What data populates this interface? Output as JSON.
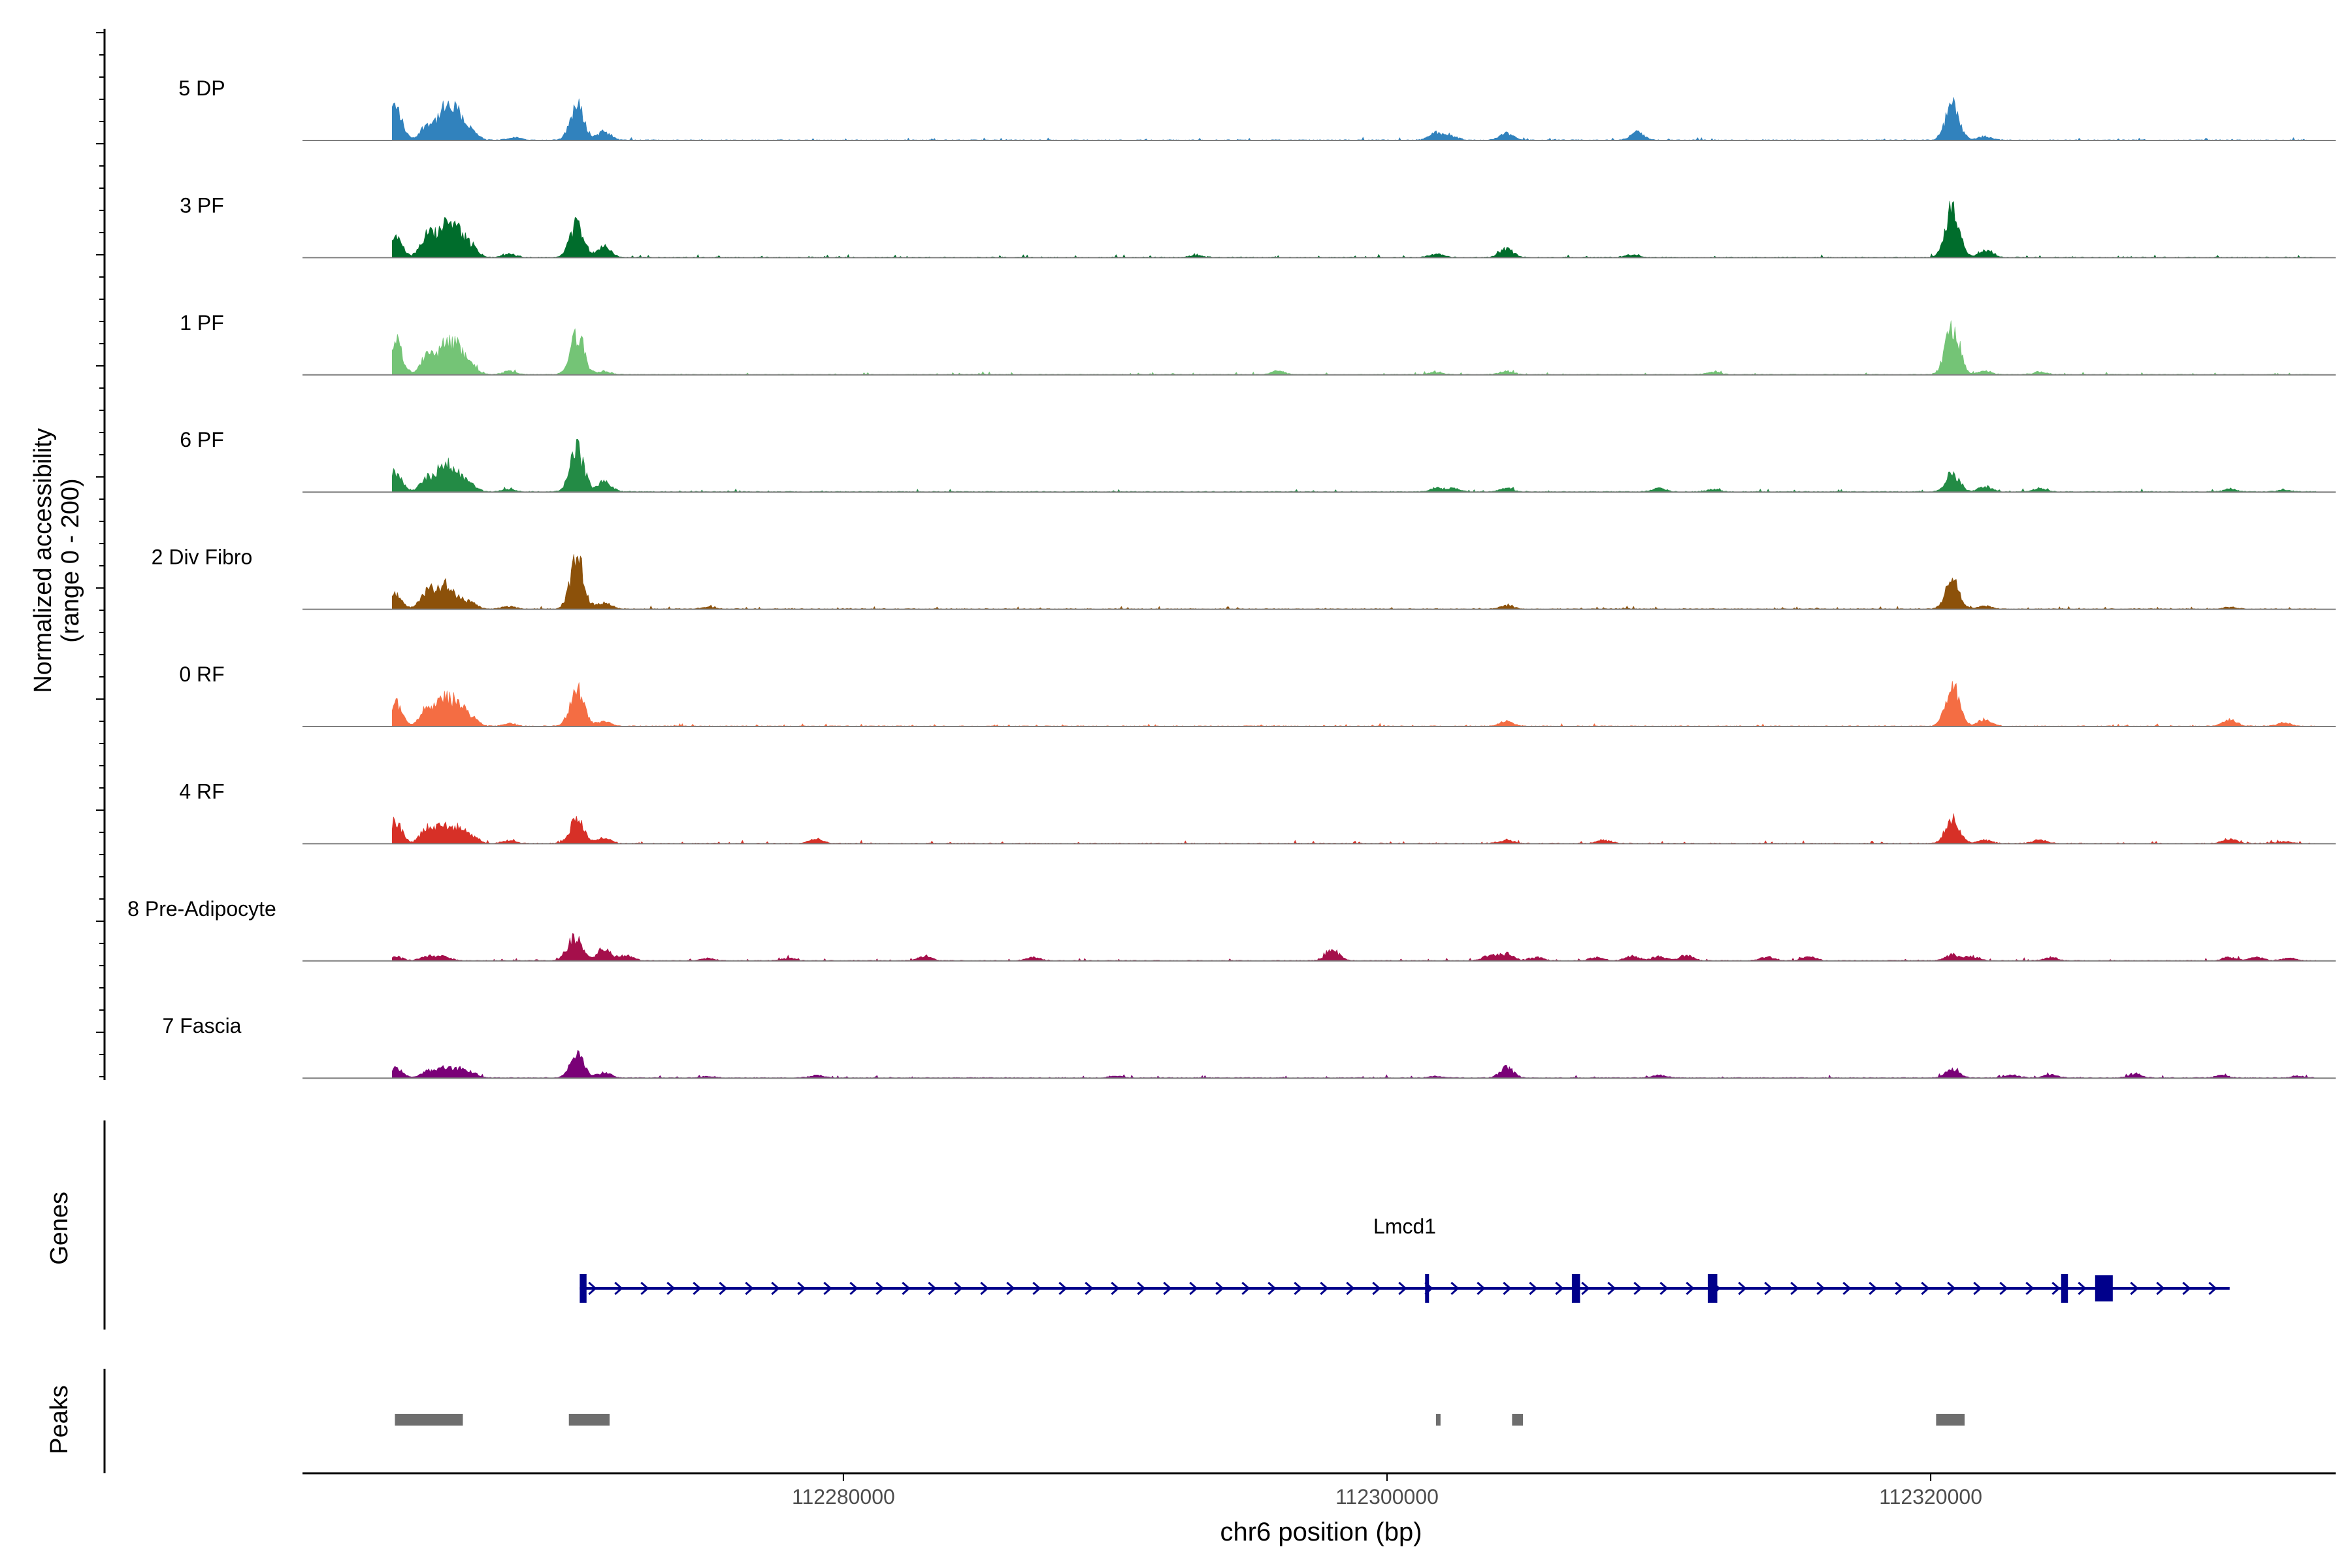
{
  "chart_data": {
    "type": "area",
    "title": "",
    "xlabel": "chr6 position (bp)",
    "ylabel": "Normalized accessibility",
    "ylabel_range": "(range 0 - 200)",
    "ylim": [
      0,
      200
    ],
    "xlim": [
      112260100,
      112334900
    ],
    "x_ticks": [
      112280000,
      112300000,
      112320000
    ],
    "x_tick_labels": [
      "112280000",
      "112300000",
      "112320000"
    ],
    "background_color": "#ffffff",
    "tracks": [
      {
        "name": "5 DP",
        "color": "#3182bd",
        "peaks": [
          [
            112263500,
            200
          ],
          [
            112264700,
            90
          ],
          [
            112265300,
            160
          ],
          [
            112265800,
            150
          ],
          [
            112266300,
            50
          ],
          [
            112267900,
            15
          ],
          [
            112270200,
            205
          ],
          [
            112271200,
            50
          ],
          [
            112301800,
            40
          ],
          [
            112302400,
            20
          ],
          [
            112304400,
            40
          ],
          [
            112309200,
            45
          ],
          [
            112320800,
            210
          ],
          [
            112322000,
            20
          ]
        ]
      },
      {
        "name": "3 PF",
        "color": "#006d2c",
        "peaks": [
          [
            112263500,
            120
          ],
          [
            112264700,
            130
          ],
          [
            112265300,
            160
          ],
          [
            112265800,
            150
          ],
          [
            112266300,
            60
          ],
          [
            112267700,
            20
          ],
          [
            112270200,
            200
          ],
          [
            112271200,
            60
          ],
          [
            112293000,
            10
          ],
          [
            112301800,
            20
          ],
          [
            112304400,
            50
          ],
          [
            112309000,
            15
          ],
          [
            112320800,
            290
          ],
          [
            112322000,
            40
          ]
        ]
      },
      {
        "name": "1 PF",
        "color": "#74c476",
        "peaks": [
          [
            112263500,
            210
          ],
          [
            112264700,
            110
          ],
          [
            112265300,
            150
          ],
          [
            112265800,
            160
          ],
          [
            112266300,
            50
          ],
          [
            112267700,
            20
          ],
          [
            112270200,
            235
          ],
          [
            112271200,
            20
          ],
          [
            112296000,
            20
          ],
          [
            112301800,
            15
          ],
          [
            112304400,
            20
          ],
          [
            112312000,
            15
          ],
          [
            112320800,
            290
          ],
          [
            112322000,
            20
          ],
          [
            112324000,
            15
          ]
        ]
      },
      {
        "name": "6 PF",
        "color": "#238b45",
        "peaks": [
          [
            112263500,
            110
          ],
          [
            112264700,
            80
          ],
          [
            112265300,
            160
          ],
          [
            112265800,
            90
          ],
          [
            112266300,
            40
          ],
          [
            112267700,
            15
          ],
          [
            112270200,
            255
          ],
          [
            112271200,
            60
          ],
          [
            112301800,
            20
          ],
          [
            112302400,
            20
          ],
          [
            112304400,
            20
          ],
          [
            112310000,
            20
          ],
          [
            112312000,
            15
          ],
          [
            112320800,
            110
          ],
          [
            112322000,
            30
          ],
          [
            112324000,
            20
          ],
          [
            112331000,
            15
          ],
          [
            112333000,
            10
          ]
        ]
      },
      {
        "name": "2 Div Fibro",
        "color": "#8c510a",
        "peaks": [
          [
            112263500,
            80
          ],
          [
            112264700,
            110
          ],
          [
            112265300,
            130
          ],
          [
            112265800,
            60
          ],
          [
            112266300,
            30
          ],
          [
            112267700,
            15
          ],
          [
            112270200,
            295
          ],
          [
            112271200,
            40
          ],
          [
            112275000,
            10
          ],
          [
            112304400,
            20
          ],
          [
            112320800,
            170
          ],
          [
            112322000,
            20
          ],
          [
            112331000,
            10
          ]
        ]
      },
      {
        "name": "0 RF",
        "color": "#f46d43",
        "peaks": [
          [
            112263500,
            140
          ],
          [
            112264700,
            110
          ],
          [
            112265300,
            150
          ],
          [
            112265800,
            120
          ],
          [
            112266300,
            50
          ],
          [
            112267700,
            15
          ],
          [
            112270200,
            225
          ],
          [
            112271200,
            30
          ],
          [
            112304400,
            30
          ],
          [
            112320800,
            235
          ],
          [
            112322000,
            40
          ],
          [
            112331000,
            40
          ],
          [
            112333000,
            20
          ]
        ]
      },
      {
        "name": "4 RF",
        "color": "#d73027",
        "peaks": [
          [
            112263500,
            130
          ],
          [
            112264700,
            90
          ],
          [
            112265300,
            100
          ],
          [
            112265800,
            80
          ],
          [
            112266300,
            40
          ],
          [
            112267700,
            15
          ],
          [
            112270200,
            145
          ],
          [
            112271200,
            30
          ],
          [
            112279000,
            25
          ],
          [
            112304400,
            20
          ],
          [
            112308000,
            20
          ],
          [
            112320800,
            150
          ],
          [
            112322000,
            20
          ],
          [
            112324000,
            20
          ],
          [
            112331000,
            25
          ],
          [
            112333000,
            10
          ]
        ]
      },
      {
        "name": "8 Pre-Adipocyte",
        "color": "#a50f4b",
        "peaks": [
          [
            112263500,
            25
          ],
          [
            112264700,
            25
          ],
          [
            112265300,
            25
          ],
          [
            112270000,
            60
          ],
          [
            112270200,
            85
          ],
          [
            112271200,
            65
          ],
          [
            112272000,
            30
          ],
          [
            112275000,
            15
          ],
          [
            112278000,
            15
          ],
          [
            112283000,
            25
          ],
          [
            112287000,
            20
          ],
          [
            112298000,
            60
          ],
          [
            112303800,
            30
          ],
          [
            112304400,
            40
          ],
          [
            112305500,
            20
          ],
          [
            112307700,
            20
          ],
          [
            112309000,
            25
          ],
          [
            112310000,
            25
          ],
          [
            112311000,
            30
          ],
          [
            112314000,
            25
          ],
          [
            112315500,
            25
          ],
          [
            112320800,
            35
          ],
          [
            112321500,
            25
          ],
          [
            112324400,
            20
          ],
          [
            112331000,
            20
          ],
          [
            112332000,
            20
          ],
          [
            112333200,
            15
          ]
        ]
      },
      {
        "name": "7 Fascia",
        "color": "#7a0177",
        "peaks": [
          [
            112263500,
            60
          ],
          [
            112264700,
            40
          ],
          [
            112265300,
            55
          ],
          [
            112265800,
            50
          ],
          [
            112266300,
            30
          ],
          [
            112270200,
            150
          ],
          [
            112271200,
            30
          ],
          [
            112275000,
            10
          ],
          [
            112279000,
            15
          ],
          [
            112290000,
            10
          ],
          [
            112301800,
            10
          ],
          [
            112304400,
            60
          ],
          [
            112310000,
            15
          ],
          [
            112320800,
            50
          ],
          [
            112323000,
            15
          ],
          [
            112324400,
            20
          ],
          [
            112327500,
            25
          ],
          [
            112330700,
            15
          ],
          [
            112333500,
            10
          ]
        ]
      }
    ],
    "genes": [
      {
        "name": "Lmcd1",
        "start": 112270300,
        "end": 112331000,
        "strand": "+",
        "color": "#00008b",
        "exons": [
          [
            112270300,
            112270550
          ],
          [
            112301400,
            112301500
          ],
          [
            112306800,
            112307100
          ],
          [
            112311800,
            112312150
          ],
          [
            112324800,
            112325050
          ],
          [
            112326050,
            112326700
          ]
        ]
      }
    ],
    "peaks_track": [
      {
        "start": 112263500,
        "end": 112266000
      },
      {
        "start": 112269900,
        "end": 112271400
      },
      {
        "start": 112301800,
        "end": 112301950
      },
      {
        "start": 112304600,
        "end": 112305000
      },
      {
        "start": 112320200,
        "end": 112321250
      }
    ],
    "panel_labels": {
      "genes": "Genes",
      "peaks": "Peaks"
    },
    "grid": false
  }
}
